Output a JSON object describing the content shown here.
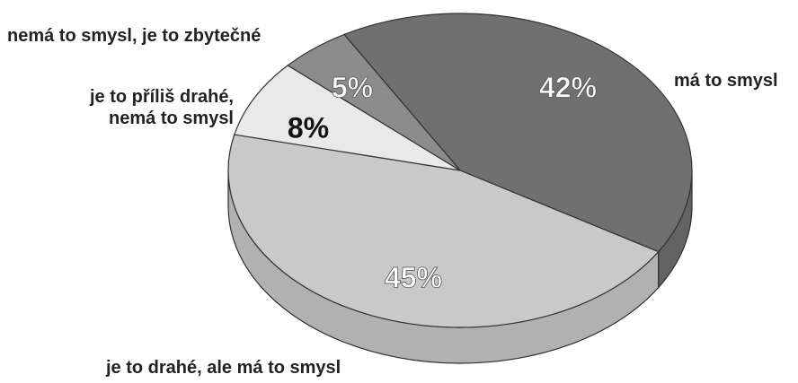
{
  "chart_data": {
    "type": "pie",
    "categories": [
      "má to smysl",
      "je to drahé, ale má to smysl",
      "je to příliš drahé,\nnemá to smysl",
      "nemá to smysl, je to zbytečné"
    ],
    "values": [
      42,
      45,
      8,
      5
    ],
    "value_labels": [
      "42%",
      "45%",
      "8%",
      "5%"
    ],
    "colors": [
      "#707070",
      "#c9c9c9",
      "#e9e9e9",
      "#8c8c8c"
    ]
  }
}
